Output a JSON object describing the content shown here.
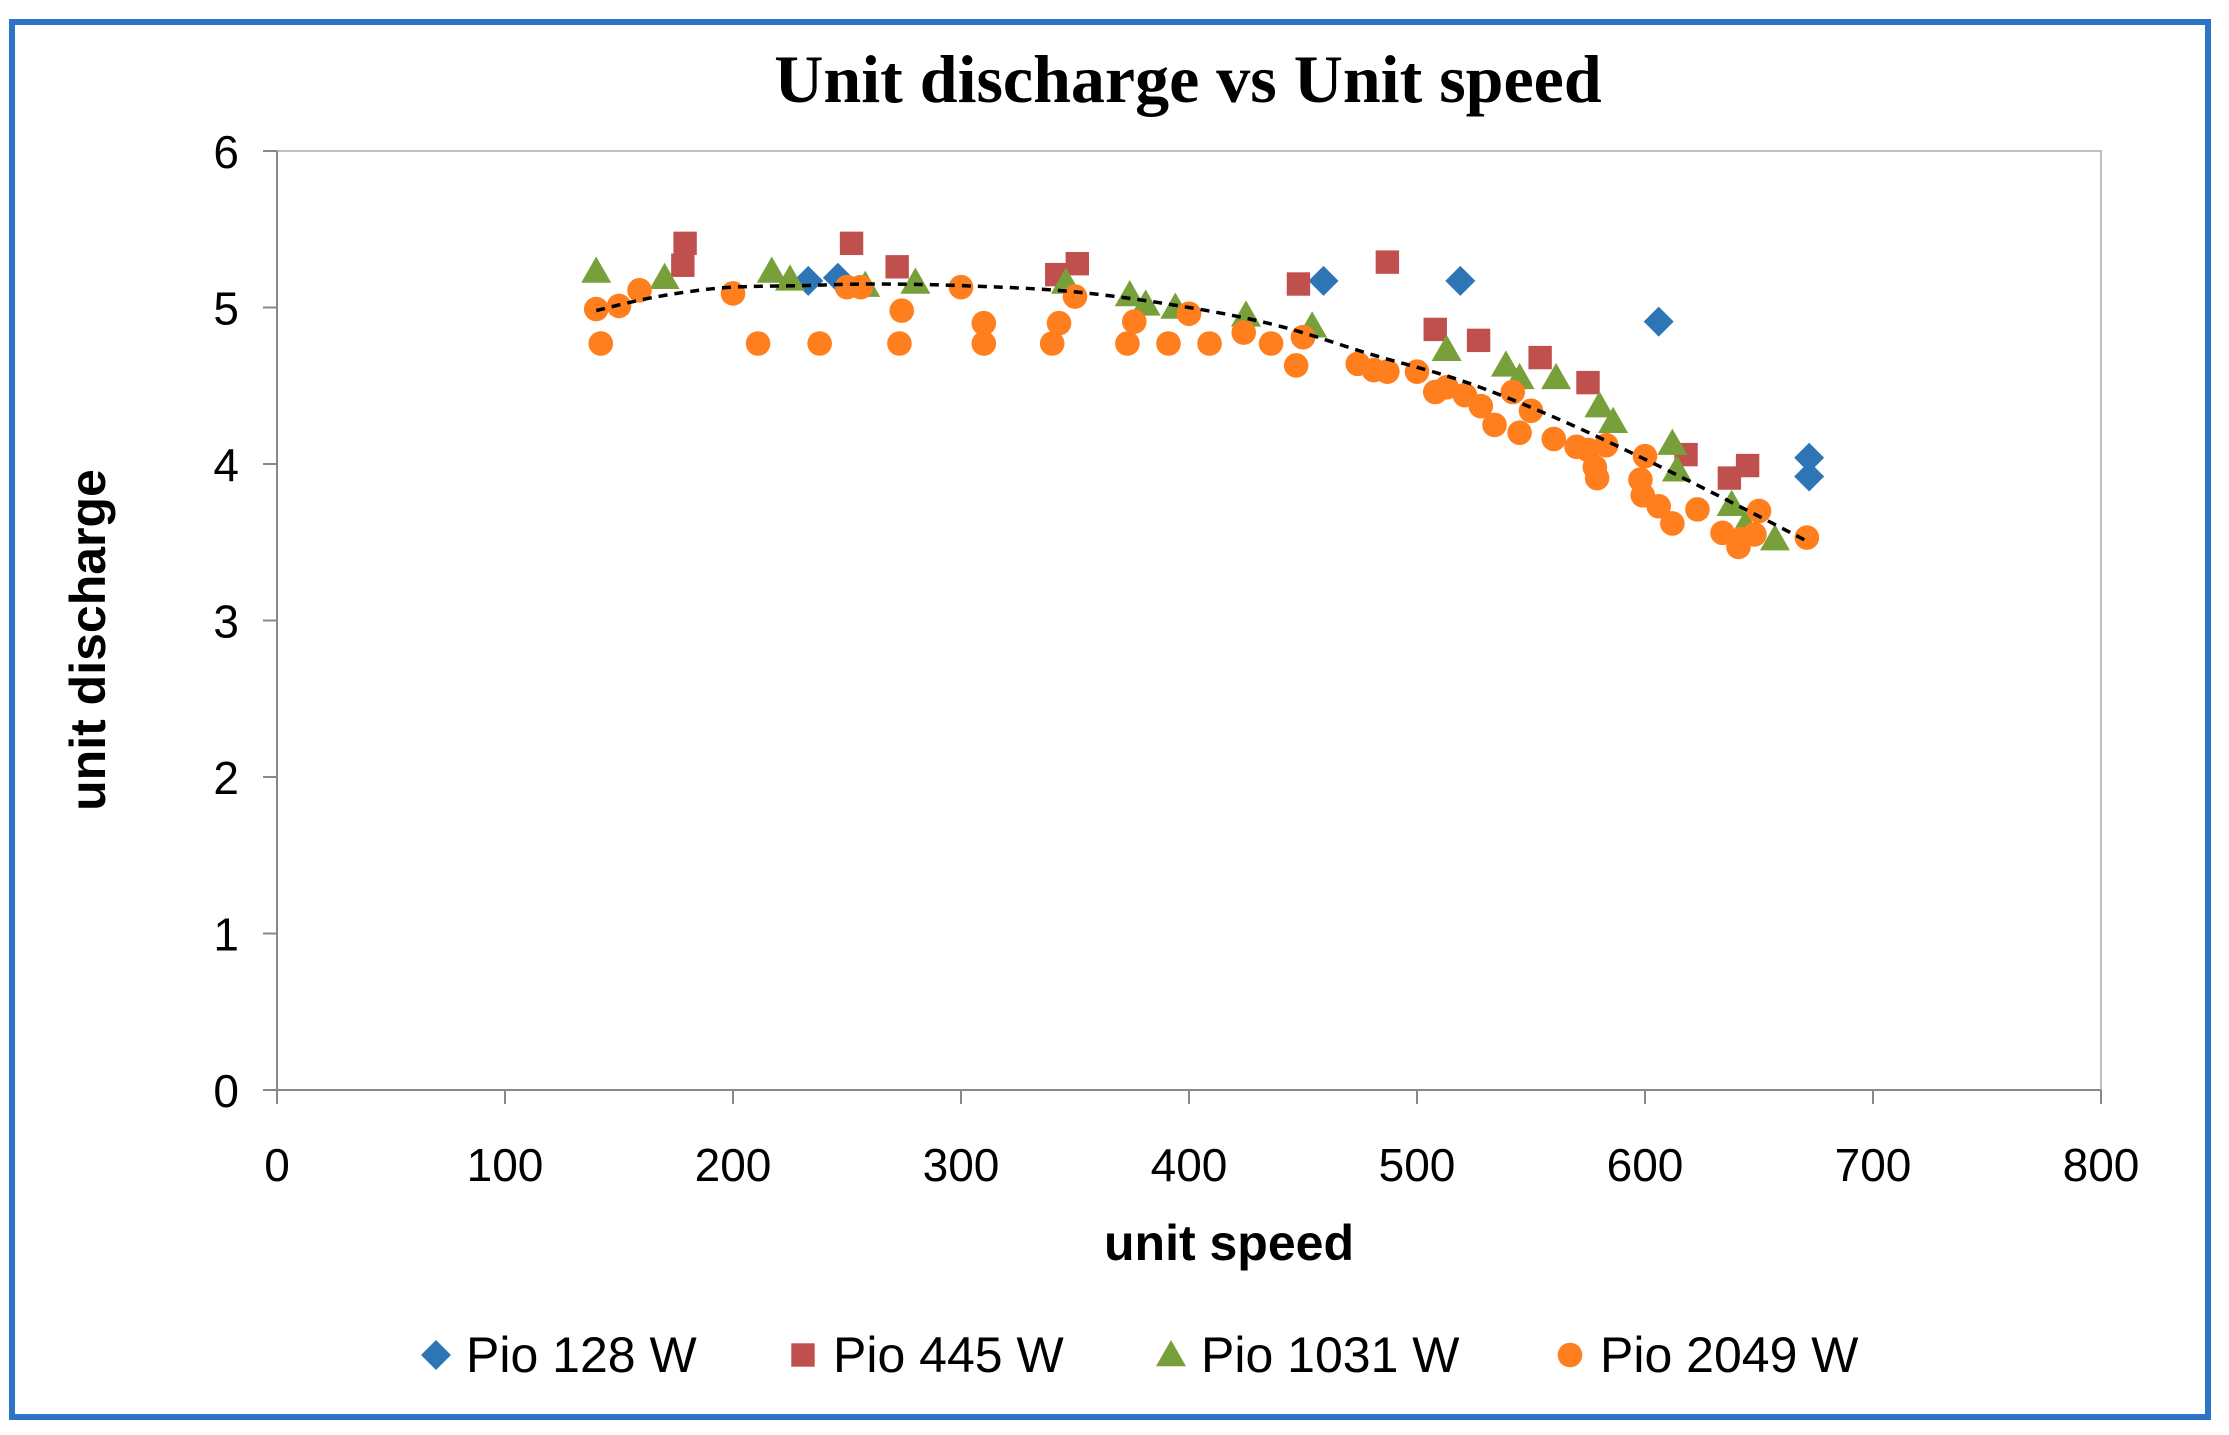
{
  "chart_data": {
    "type": "scatter",
    "title": "Unit discharge vs Unit speed",
    "xlabel": "unit speed",
    "ylabel": "unit discharge",
    "xlim": [
      0,
      800
    ],
    "ylim": [
      0,
      6
    ],
    "xticks": [
      0,
      100,
      200,
      300,
      400,
      500,
      600,
      700,
      800
    ],
    "yticks": [
      0,
      1,
      2,
      3,
      4,
      5,
      6
    ],
    "xtick_labels": [
      "0",
      "100",
      "200",
      "300",
      "400",
      "500",
      "600",
      "700",
      "800"
    ],
    "ytick_labels": [
      "0",
      "1",
      "2",
      "3",
      "4",
      "5",
      "6"
    ],
    "grid": false,
    "legend_position": "bottom",
    "colors": {
      "frame": "#2e74c4",
      "axis": "#888888",
      "trend": "#000000",
      "Pio 128 W": "#2e75b6",
      "Pio 445 W": "#c0504d",
      "Pio 1031 W": "#77a03a",
      "Pio 2049 W": "#ff7f1f"
    },
    "series": [
      {
        "name": "Pio 128 W",
        "marker": "diamond",
        "points": [
          [
            233,
            5.17
          ],
          [
            246,
            5.19
          ],
          [
            459,
            5.17
          ],
          [
            519,
            5.17
          ],
          [
            606,
            4.91
          ],
          [
            672,
            4.04
          ],
          [
            672,
            3.92
          ]
        ]
      },
      {
        "name": "Pio 445 W",
        "marker": "square",
        "points": [
          [
            179,
            5.41
          ],
          [
            178,
            5.27
          ],
          [
            252,
            5.41
          ],
          [
            272,
            5.26
          ],
          [
            342,
            5.21
          ],
          [
            351,
            5.28
          ],
          [
            448,
            5.15
          ],
          [
            487,
            5.29
          ],
          [
            508,
            4.86
          ],
          [
            527,
            4.79
          ],
          [
            554,
            4.68
          ],
          [
            575,
            4.52
          ],
          [
            618,
            4.06
          ],
          [
            637,
            3.91
          ],
          [
            645,
            3.99
          ]
        ]
      },
      {
        "name": "Pio 1031 W",
        "marker": "triangle",
        "points": [
          [
            140,
            5.23
          ],
          [
            170,
            5.19
          ],
          [
            217,
            5.23
          ],
          [
            225,
            5.18
          ],
          [
            258,
            5.14
          ],
          [
            280,
            5.16
          ],
          [
            346,
            5.16
          ],
          [
            374,
            5.08
          ],
          [
            381,
            5.02
          ],
          [
            394,
            5.0
          ],
          [
            425,
            4.95
          ],
          [
            454,
            4.88
          ],
          [
            513,
            4.73
          ],
          [
            539,
            4.63
          ],
          [
            545,
            4.55
          ],
          [
            561,
            4.55
          ],
          [
            580,
            4.37
          ],
          [
            586,
            4.27
          ],
          [
            612,
            4.13
          ],
          [
            614,
            3.96
          ],
          [
            638,
            3.74
          ],
          [
            644,
            3.61
          ],
          [
            657,
            3.52
          ]
        ]
      },
      {
        "name": "Pio 2049 W",
        "marker": "circle",
        "points": [
          [
            140,
            4.99
          ],
          [
            142,
            4.77
          ],
          [
            150,
            5.01
          ],
          [
            159,
            5.11
          ],
          [
            200,
            5.09
          ],
          [
            211,
            4.77
          ],
          [
            238,
            4.77
          ],
          [
            250,
            5.13
          ],
          [
            256,
            5.13
          ],
          [
            273,
            4.77
          ],
          [
            274,
            4.98
          ],
          [
            300,
            5.13
          ],
          [
            310,
            4.9
          ],
          [
            310,
            4.77
          ],
          [
            340,
            4.77
          ],
          [
            343,
            4.9
          ],
          [
            350,
            5.07
          ],
          [
            373,
            4.77
          ],
          [
            376,
            4.91
          ],
          [
            391,
            4.77
          ],
          [
            400,
            4.96
          ],
          [
            409,
            4.77
          ],
          [
            424,
            4.84
          ],
          [
            436,
            4.77
          ],
          [
            447,
            4.63
          ],
          [
            450,
            4.81
          ],
          [
            474,
            4.64
          ],
          [
            481,
            4.6
          ],
          [
            487,
            4.59
          ],
          [
            500,
            4.59
          ],
          [
            508,
            4.46
          ],
          [
            513,
            4.49
          ],
          [
            521,
            4.44
          ],
          [
            528,
            4.37
          ],
          [
            534,
            4.25
          ],
          [
            542,
            4.46
          ],
          [
            545,
            4.2
          ],
          [
            550,
            4.34
          ],
          [
            560,
            4.16
          ],
          [
            570,
            4.11
          ],
          [
            575,
            4.09
          ],
          [
            578,
            3.98
          ],
          [
            579,
            3.91
          ],
          [
            583,
            4.12
          ],
          [
            598,
            3.9
          ],
          [
            599,
            3.8
          ],
          [
            600,
            4.05
          ],
          [
            606,
            3.73
          ],
          [
            612,
            3.62
          ],
          [
            623,
            3.71
          ],
          [
            634,
            3.56
          ],
          [
            641,
            3.47
          ],
          [
            642,
            3.52
          ],
          [
            648,
            3.55
          ],
          [
            650,
            3.7
          ],
          [
            671,
            3.53
          ]
        ]
      }
    ],
    "trendline": {
      "style": "dashed",
      "points": [
        [
          140,
          4.98
        ],
        [
          160,
          5.05
        ],
        [
          180,
          5.1
        ],
        [
          200,
          5.13
        ],
        [
          230,
          5.14
        ],
        [
          260,
          5.15
        ],
        [
          300,
          5.14
        ],
        [
          350,
          5.1
        ],
        [
          400,
          5.0
        ],
        [
          440,
          4.88
        ],
        [
          480,
          4.7
        ],
        [
          520,
          4.53
        ],
        [
          560,
          4.3
        ],
        [
          600,
          4.03
        ],
        [
          640,
          3.74
        ],
        [
          672,
          3.5
        ]
      ]
    }
  }
}
